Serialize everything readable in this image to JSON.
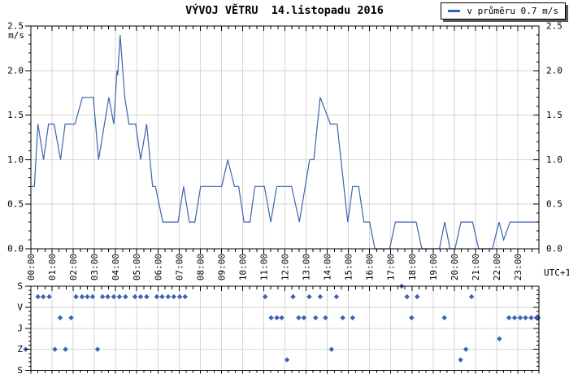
{
  "title": "VÝVOJ VĚTRU  14.listopadu 2016",
  "legend": {
    "label": "v průměru 0.7 m/s"
  },
  "axis": {
    "unit_label": "m/s",
    "utc_label": "UTC+1",
    "x_labels": [
      "00:00",
      "01:00",
      "02:00",
      "03:00",
      "04:00",
      "05:00",
      "06:00",
      "07:00",
      "08:00",
      "09:00",
      "10:00",
      "11:00",
      "12:00",
      "13:00",
      "14:00",
      "15:00",
      "16:00",
      "17:00",
      "18:00",
      "19:00",
      "20:00",
      "21:00",
      "22:00",
      "23:00"
    ],
    "y_tick_labels": [
      "0.0",
      "0.5",
      "1.0",
      "1.5",
      "2.0",
      "2.5"
    ],
    "direction_labels_top_to_bottom": [
      "S",
      "V",
      "J",
      "Z",
      "S"
    ]
  },
  "colors": {
    "line": "#3b63b0",
    "dot": "#3b63b0",
    "legend_dash": "#2f5fc1",
    "grid": "#d6d6d6",
    "frame": "#000000",
    "text": "#000000",
    "background": "#ffffff"
  },
  "chart_data": [
    {
      "type": "line",
      "name": "wind-speed",
      "ylabel": "m/s",
      "ylim": [
        0,
        2.5
      ],
      "ytick_step": 0.5,
      "x_unit": "hours",
      "xlim": [
        0,
        24
      ],
      "timezone": "UTC+1",
      "average_m_s": 0.7,
      "grid": true,
      "legend_position": "top-right",
      "series": [
        {
          "points": [
            [
              "00:00",
              0.7
            ],
            [
              "00:10",
              0.7
            ],
            [
              "00:20",
              1.4
            ],
            [
              "00:36",
              1.0
            ],
            [
              "00:50",
              1.4
            ],
            [
              "01:06",
              1.4
            ],
            [
              "01:24",
              1.0
            ],
            [
              "01:37",
              1.4
            ],
            [
              "02:05",
              1.4
            ],
            [
              "02:26",
              1.7
            ],
            [
              "02:57",
              1.7
            ],
            [
              "03:12",
              1.0
            ],
            [
              "03:41",
              1.7
            ],
            [
              "03:55",
              1.4
            ],
            [
              "04:04",
              2.0
            ],
            [
              "04:06",
              1.95
            ],
            [
              "04:13",
              2.4
            ],
            [
              "04:26",
              1.7
            ],
            [
              "04:38",
              1.4
            ],
            [
              "04:57",
              1.4
            ],
            [
              "05:11",
              1.0
            ],
            [
              "05:28",
              1.4
            ],
            [
              "05:45",
              0.7
            ],
            [
              "05:53",
              0.7
            ],
            [
              "06:14",
              0.3
            ],
            [
              "06:57",
              0.3
            ],
            [
              "07:13",
              0.7
            ],
            [
              "07:29",
              0.3
            ],
            [
              "07:45",
              0.3
            ],
            [
              "08:01",
              0.7
            ],
            [
              "09:01",
              0.7
            ],
            [
              "09:18",
              1.0
            ],
            [
              "09:37",
              0.7
            ],
            [
              "09:49",
              0.7
            ],
            [
              "10:04",
              0.3
            ],
            [
              "10:21",
              0.3
            ],
            [
              "10:35",
              0.7
            ],
            [
              "11:02",
              0.7
            ],
            [
              "11:20",
              0.3
            ],
            [
              "11:37",
              0.7
            ],
            [
              "12:19",
              0.7
            ],
            [
              "12:41",
              0.3
            ],
            [
              "13:10",
              1.0
            ],
            [
              "13:22",
              1.0
            ],
            [
              "13:40",
              1.7
            ],
            [
              "14:09",
              1.4
            ],
            [
              "14:28",
              1.4
            ],
            [
              "14:58",
              0.3
            ],
            [
              "15:12",
              0.7
            ],
            [
              "15:29",
              0.7
            ],
            [
              "15:44",
              0.3
            ],
            [
              "16:00",
              0.3
            ],
            [
              "16:15",
              0.0
            ],
            [
              "16:57",
              0.0
            ],
            [
              "17:13",
              0.3
            ],
            [
              "18:12",
              0.3
            ],
            [
              "18:28",
              0.0
            ],
            [
              "19:18",
              0.0
            ],
            [
              "19:33",
              0.3
            ],
            [
              "19:48",
              0.0
            ],
            [
              "20:02",
              0.0
            ],
            [
              "20:19",
              0.3
            ],
            [
              "20:52",
              0.3
            ],
            [
              "21:09",
              0.0
            ],
            [
              "21:48",
              0.0
            ],
            [
              "22:07",
              0.3
            ],
            [
              "22:20",
              0.1
            ],
            [
              "22:38",
              0.3
            ],
            [
              "23:59",
              0.3
            ]
          ]
        }
      ]
    },
    {
      "type": "scatter",
      "name": "wind-direction",
      "y_axis_labels_top_to_bottom": [
        "S",
        "V",
        "J",
        "Z",
        "S"
      ],
      "level_map": {
        "N": 0,
        "NE": 0.5,
        "E": 1,
        "SE": 1.5,
        "S": 2,
        "SW": 2.5,
        "W": 3,
        "NW": 3.5,
        "N_bottom": 4
      },
      "points": [
        [
          "-0:15",
          "W"
        ],
        [
          "00:20",
          "NE"
        ],
        [
          "00:35",
          "NE"
        ],
        [
          "00:52",
          "NE"
        ],
        [
          "01:08",
          "W"
        ],
        [
          "01:23",
          "SE"
        ],
        [
          "01:38",
          "W"
        ],
        [
          "01:54",
          "SE"
        ],
        [
          "02:08",
          "NE"
        ],
        [
          "02:25",
          "NE"
        ],
        [
          "02:40",
          "NE"
        ],
        [
          "02:55",
          "NE"
        ],
        [
          "03:09",
          "W"
        ],
        [
          "03:23",
          "NE"
        ],
        [
          "03:38",
          "NE"
        ],
        [
          "03:55",
          "NE"
        ],
        [
          "04:11",
          "NE"
        ],
        [
          "04:28",
          "NE"
        ],
        [
          "04:55",
          "NE"
        ],
        [
          "05:11",
          "NE"
        ],
        [
          "05:28",
          "NE"
        ],
        [
          "05:57",
          "NE"
        ],
        [
          "06:12",
          "NE"
        ],
        [
          "06:29",
          "NE"
        ],
        [
          "06:45",
          "NE"
        ],
        [
          "07:02",
          "NE"
        ],
        [
          "07:17",
          "NE"
        ],
        [
          "11:04",
          "NE"
        ],
        [
          "11:21",
          "SE"
        ],
        [
          "11:37",
          "SE"
        ],
        [
          "11:51",
          "SE"
        ],
        [
          "12:06",
          "NW"
        ],
        [
          "12:23",
          "NE"
        ],
        [
          "12:39",
          "SE"
        ],
        [
          "12:54",
          "SE"
        ],
        [
          "13:09",
          "NE"
        ],
        [
          "13:27",
          "SE"
        ],
        [
          "13:40",
          "NE"
        ],
        [
          "13:55",
          "SE"
        ],
        [
          "14:12",
          "W"
        ],
        [
          "14:26",
          "NE"
        ],
        [
          "14:44",
          "SE"
        ],
        [
          "15:12",
          "SE"
        ],
        [
          "17:31",
          "N"
        ],
        [
          "17:46",
          "NE"
        ],
        [
          "17:59",
          "SE"
        ],
        [
          "18:15",
          "NE"
        ],
        [
          "19:32",
          "SE"
        ],
        [
          "20:18",
          "NW"
        ],
        [
          "20:33",
          "W"
        ],
        [
          "20:49",
          "NE"
        ],
        [
          "22:08",
          "SW"
        ],
        [
          "22:35",
          "SE"
        ],
        [
          "22:51",
          "SE"
        ],
        [
          "23:07",
          "SE"
        ],
        [
          "23:22",
          "SE"
        ],
        [
          "23:38",
          "SE"
        ],
        [
          "23:53",
          "SE"
        ],
        [
          "23:58",
          "SE"
        ]
      ]
    }
  ]
}
